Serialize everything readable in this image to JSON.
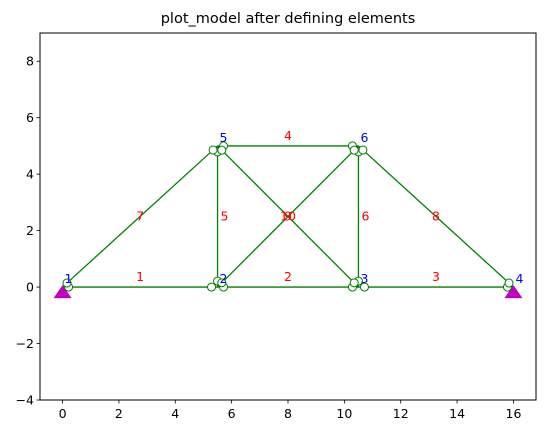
{
  "chart_data": {
    "type": "diagram",
    "title": "plot_model after defining elements",
    "xlim": [
      -0.8,
      16.8
    ],
    "ylim": [
      -4,
      9
    ],
    "x_ticks": [
      0,
      2,
      4,
      6,
      8,
      10,
      12,
      14,
      16
    ],
    "y_ticks": [
      -4,
      -2,
      0,
      2,
      4,
      6,
      8
    ],
    "x_tick_labels": [
      "0",
      "2",
      "4",
      "6",
      "8",
      "10",
      "12",
      "14",
      "16"
    ],
    "y_tick_labels": [
      "−4",
      "−2",
      "0",
      "2",
      "4",
      "6",
      "8"
    ],
    "colors": {
      "element": "#008000",
      "element_label": "#ff0000",
      "node_label": "#0000ff",
      "support": "#bf00bf"
    },
    "nodes": [
      {
        "id": "1",
        "x": 0,
        "y": 0
      },
      {
        "id": "2",
        "x": 5.5,
        "y": 0
      },
      {
        "id": "3",
        "x": 10.5,
        "y": 0
      },
      {
        "id": "4",
        "x": 16,
        "y": 0
      },
      {
        "id": "5",
        "x": 5.5,
        "y": 5
      },
      {
        "id": "6",
        "x": 10.5,
        "y": 5
      }
    ],
    "supports": [
      "1",
      "4"
    ],
    "elements": [
      {
        "id": "1",
        "from": "1",
        "to": "2"
      },
      {
        "id": "2",
        "from": "2",
        "to": "3"
      },
      {
        "id": "3",
        "from": "3",
        "to": "4"
      },
      {
        "id": "4",
        "from": "5",
        "to": "6"
      },
      {
        "id": "5",
        "from": "2",
        "to": "5"
      },
      {
        "id": "6",
        "from": "3",
        "to": "6"
      },
      {
        "id": "7",
        "from": "1",
        "to": "5"
      },
      {
        "id": "8",
        "from": "6",
        "to": "4"
      },
      {
        "id": "9",
        "from": "2",
        "to": "6"
      },
      {
        "id": "10",
        "from": "5",
        "to": "3"
      }
    ]
  }
}
